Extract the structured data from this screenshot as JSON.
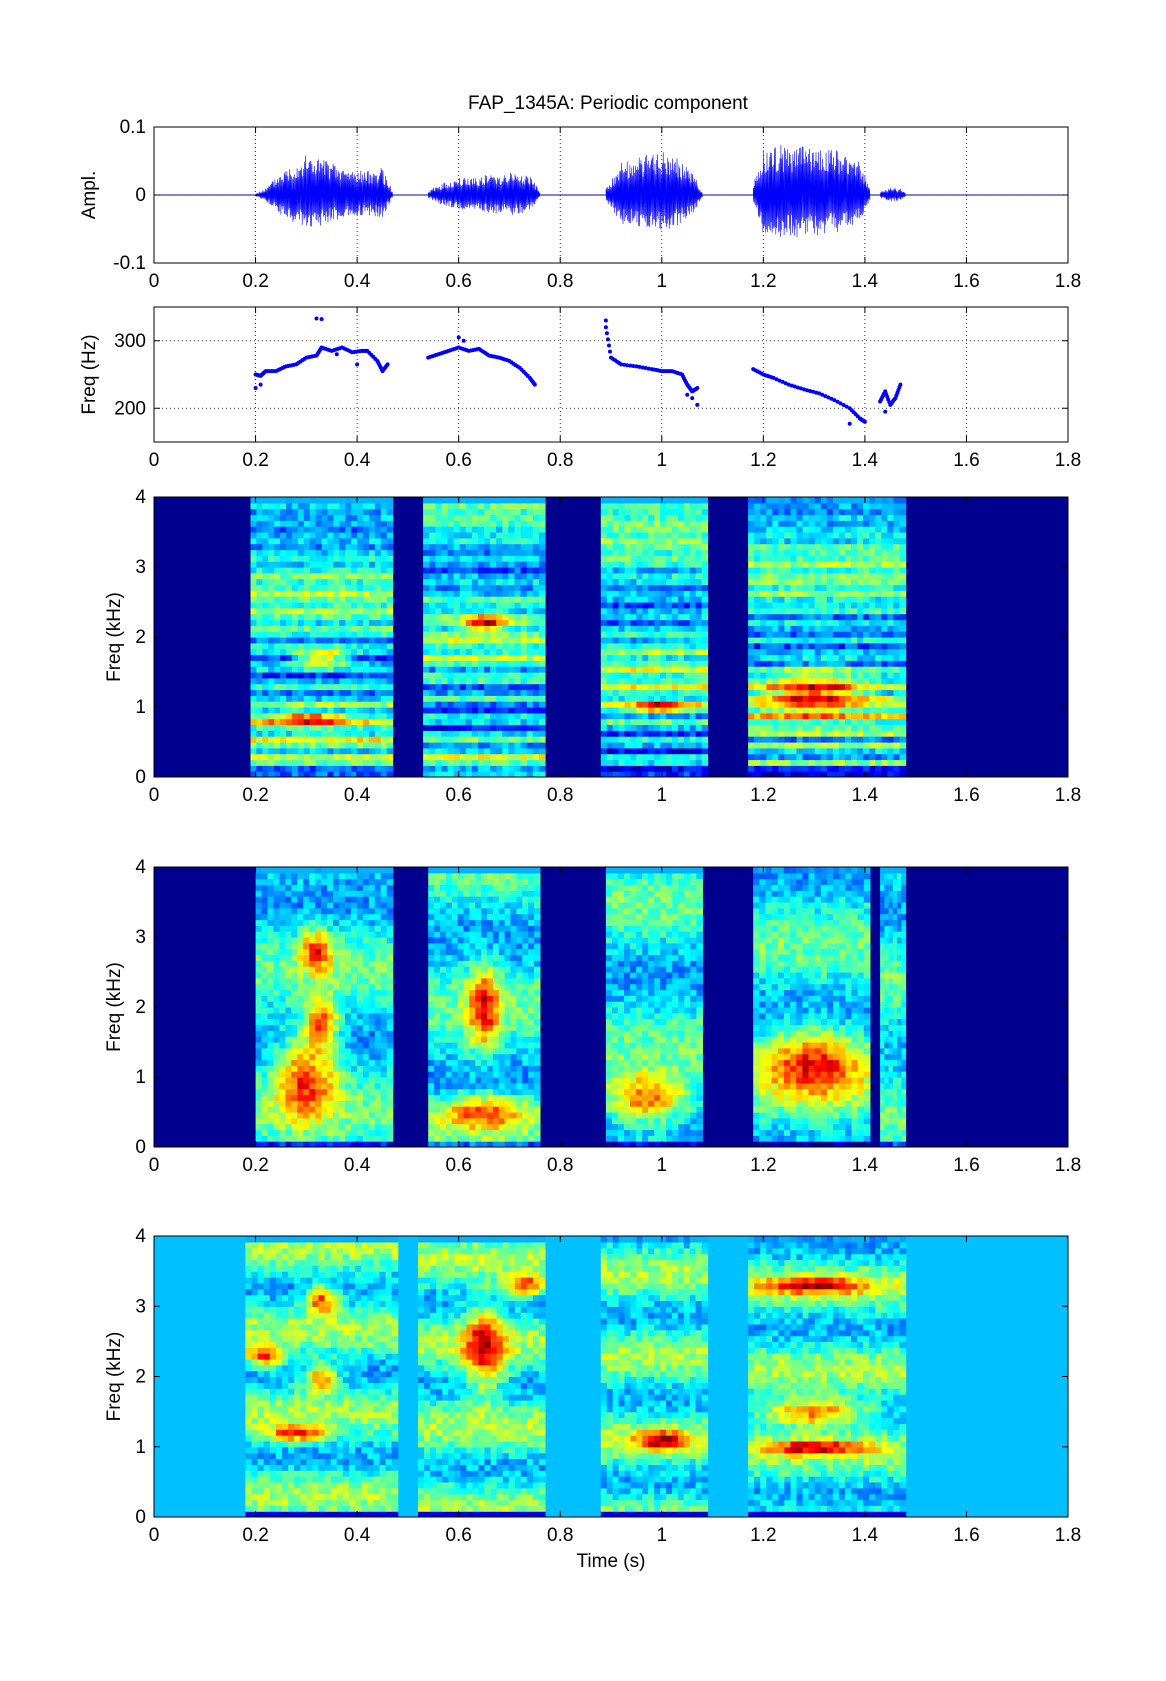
{
  "title": "FAP_1345A: Periodic component",
  "chart_data": [
    {
      "type": "line",
      "panel": "waveform",
      "title": "FAP_1345A: Periodic component",
      "ylabel": "Ampl.",
      "xlabel": "",
      "xlim": [
        0,
        1.8
      ],
      "ylim": [
        -0.1,
        0.1
      ],
      "xticks": [
        "0",
        "0.2",
        "0.4",
        "0.6",
        "0.8",
        "1",
        "1.2",
        "1.4",
        "1.6",
        "1.8"
      ],
      "yticks": [
        "-0.1",
        "0",
        "0.1"
      ],
      "grid": true,
      "line_color": "#0000ff",
      "voiced_segments": [
        {
          "start": 0.2,
          "end": 0.47,
          "envelope": [
            [
              0.2,
              0.002
            ],
            [
              0.22,
              0.01
            ],
            [
              0.25,
              0.035
            ],
            [
              0.3,
              0.06
            ],
            [
              0.33,
              0.055
            ],
            [
              0.37,
              0.04
            ],
            [
              0.42,
              0.035
            ],
            [
              0.45,
              0.04
            ],
            [
              0.47,
              0.005
            ]
          ]
        },
        {
          "start": 0.54,
          "end": 0.76,
          "envelope": [
            [
              0.54,
              0.005
            ],
            [
              0.56,
              0.015
            ],
            [
              0.6,
              0.025
            ],
            [
              0.65,
              0.03
            ],
            [
              0.7,
              0.035
            ],
            [
              0.74,
              0.03
            ],
            [
              0.76,
              0.005
            ]
          ]
        },
        {
          "start": 0.89,
          "end": 1.08,
          "envelope": [
            [
              0.89,
              0.01
            ],
            [
              0.92,
              0.05
            ],
            [
              0.95,
              0.055
            ],
            [
              1.0,
              0.065
            ],
            [
              1.03,
              0.055
            ],
            [
              1.06,
              0.035
            ],
            [
              1.08,
              0.005
            ]
          ]
        },
        {
          "start": 1.18,
          "end": 1.41,
          "envelope": [
            [
              1.18,
              0.015
            ],
            [
              1.2,
              0.07
            ],
            [
              1.25,
              0.075
            ],
            [
              1.3,
              0.07
            ],
            [
              1.35,
              0.065
            ],
            [
              1.39,
              0.05
            ],
            [
              1.41,
              0.01
            ]
          ]
        },
        {
          "start": 1.43,
          "end": 1.48,
          "envelope": [
            [
              1.43,
              0.005
            ],
            [
              1.45,
              0.012
            ],
            [
              1.47,
              0.01
            ],
            [
              1.48,
              0.003
            ]
          ]
        }
      ]
    },
    {
      "type": "scatter",
      "panel": "pitch",
      "ylabel": "Freq (Hz)",
      "xlabel": "",
      "xlim": [
        0,
        1.8
      ],
      "ylim": [
        150,
        350
      ],
      "xticks": [
        "0",
        "0.2",
        "0.4",
        "0.6",
        "0.8",
        "1",
        "1.2",
        "1.4",
        "1.6",
        "1.8"
      ],
      "yticks": [
        "200",
        "300"
      ],
      "grid": true,
      "marker_color": "#0000ff",
      "contours": [
        [
          [
            0.2,
            250
          ],
          [
            0.21,
            248
          ],
          [
            0.22,
            255
          ],
          [
            0.24,
            255
          ],
          [
            0.26,
            262
          ],
          [
            0.28,
            265
          ],
          [
            0.3,
            275
          ],
          [
            0.32,
            278
          ],
          [
            0.33,
            290
          ],
          [
            0.35,
            285
          ],
          [
            0.37,
            290
          ],
          [
            0.39,
            283
          ],
          [
            0.41,
            285
          ],
          [
            0.42,
            285
          ],
          [
            0.44,
            270
          ],
          [
            0.45,
            255
          ],
          [
            0.46,
            265
          ]
        ],
        [
          [
            0.54,
            275
          ],
          [
            0.56,
            280
          ],
          [
            0.58,
            285
          ],
          [
            0.6,
            290
          ],
          [
            0.62,
            285
          ],
          [
            0.64,
            288
          ],
          [
            0.66,
            278
          ],
          [
            0.68,
            275
          ],
          [
            0.7,
            270
          ],
          [
            0.72,
            260
          ],
          [
            0.74,
            245
          ],
          [
            0.75,
            235
          ]
        ],
        [
          [
            0.89,
            320
          ],
          [
            0.9,
            275
          ],
          [
            0.92,
            265
          ],
          [
            0.95,
            262
          ],
          [
            0.98,
            258
          ],
          [
            1.0,
            255
          ],
          [
            1.02,
            255
          ],
          [
            1.04,
            250
          ],
          [
            1.05,
            235
          ],
          [
            1.06,
            225
          ],
          [
            1.07,
            230
          ]
        ],
        [
          [
            1.18,
            258
          ],
          [
            1.2,
            250
          ],
          [
            1.22,
            245
          ],
          [
            1.25,
            235
          ],
          [
            1.28,
            228
          ],
          [
            1.31,
            222
          ],
          [
            1.34,
            212
          ],
          [
            1.37,
            200
          ],
          [
            1.39,
            185
          ],
          [
            1.4,
            180
          ]
        ],
        [
          [
            1.43,
            210
          ],
          [
            1.44,
            225
          ],
          [
            1.45,
            205
          ],
          [
            1.46,
            215
          ],
          [
            1.47,
            235
          ]
        ]
      ],
      "outliers": [
        [
          0.2,
          230
        ],
        [
          0.21,
          235
        ],
        [
          0.32,
          333
        ],
        [
          0.33,
          332
        ],
        [
          0.36,
          280
        ],
        [
          0.4,
          265
        ],
        [
          0.6,
          305
        ],
        [
          0.61,
          300
        ],
        [
          0.89,
          330
        ],
        [
          1.05,
          220
        ],
        [
          1.06,
          215
        ],
        [
          1.07,
          205
        ],
        [
          1.37,
          177
        ],
        [
          1.44,
          195
        ]
      ]
    },
    {
      "type": "heatmap",
      "panel": "spectrogram-narrowband",
      "ylabel": "Freq (kHz)",
      "xlabel": "",
      "xlim": [
        0,
        1.8
      ],
      "ylim": [
        0,
        4
      ],
      "xticks": [
        "0",
        "0.2",
        "0.4",
        "0.6",
        "0.8",
        "1",
        "1.2",
        "1.4",
        "1.6",
        "1.8"
      ],
      "yticks": [
        "0",
        "1",
        "2",
        "3",
        "4"
      ],
      "colormap": "jet",
      "background": "#00008f",
      "active_regions": [
        [
          0.19,
          0.47
        ],
        [
          0.53,
          0.77
        ],
        [
          0.88,
          1.09
        ],
        [
          1.17,
          1.48
        ]
      ],
      "harmonics_f0_hz": [
        262,
        282,
        258,
        218
      ],
      "hotspots": [
        {
          "t": 0.33,
          "f": 1.7,
          "w": 0.05,
          "h": 0.12
        },
        {
          "t": 0.3,
          "f": 0.85,
          "w": 0.08,
          "h": 0.08
        },
        {
          "t": 0.65,
          "f": 2.2,
          "w": 0.04,
          "h": 0.12
        },
        {
          "t": 1.0,
          "f": 1.0,
          "w": 0.06,
          "h": 0.08
        },
        {
          "t": 1.3,
          "f": 1.2,
          "w": 0.1,
          "h": 0.3
        }
      ]
    },
    {
      "type": "heatmap",
      "panel": "spectrogram-wideband",
      "ylabel": "Freq (kHz)",
      "xlabel": "",
      "xlim": [
        0,
        1.8
      ],
      "ylim": [
        0,
        4
      ],
      "xticks": [
        "0",
        "0.2",
        "0.4",
        "0.6",
        "0.8",
        "1",
        "1.2",
        "1.4",
        "1.6",
        "1.8"
      ],
      "yticks": [
        "0",
        "1",
        "2",
        "3",
        "4"
      ],
      "colormap": "jet",
      "background": "#00008f",
      "active_regions": [
        [
          0.2,
          0.47
        ],
        [
          0.54,
          0.76
        ],
        [
          0.89,
          1.08
        ],
        [
          1.18,
          1.41
        ],
        [
          1.43,
          1.48
        ]
      ],
      "hotspots": [
        {
          "t": 0.3,
          "f": 1.0,
          "w": 0.06,
          "h": 0.6
        },
        {
          "t": 0.33,
          "f": 1.8,
          "w": 0.03,
          "h": 0.35
        },
        {
          "t": 0.32,
          "f": 2.8,
          "w": 0.03,
          "h": 0.3
        },
        {
          "t": 0.65,
          "f": 2.0,
          "w": 0.03,
          "h": 0.6
        },
        {
          "t": 0.65,
          "f": 0.5,
          "w": 0.1,
          "h": 0.25
        },
        {
          "t": 0.97,
          "f": 0.7,
          "w": 0.08,
          "h": 0.35
        },
        {
          "t": 1.3,
          "f": 1.2,
          "w": 0.1,
          "h": 0.5
        }
      ]
    },
    {
      "type": "heatmap",
      "panel": "spectrogram-lpc",
      "ylabel": "Freq (kHz)",
      "xlabel": "Time (s)",
      "xlim": [
        0,
        1.8
      ],
      "ylim": [
        0,
        4
      ],
      "xticks": [
        "0",
        "0.2",
        "0.4",
        "0.6",
        "0.8",
        "1",
        "1.2",
        "1.4",
        "1.6",
        "1.8"
      ],
      "yticks": [
        "0",
        "1",
        "2",
        "3",
        "4"
      ],
      "colormap": "jet",
      "background": "#00c0ff",
      "active_regions": [
        [
          0.18,
          0.48
        ],
        [
          0.52,
          0.77
        ],
        [
          0.88,
          1.09
        ],
        [
          1.17,
          1.48
        ]
      ],
      "hotspots": [
        {
          "t": 0.22,
          "f": 2.3,
          "w": 0.04,
          "h": 0.15
        },
        {
          "t": 0.33,
          "f": 2.0,
          "w": 0.03,
          "h": 0.2
        },
        {
          "t": 0.33,
          "f": 3.1,
          "w": 0.03,
          "h": 0.2
        },
        {
          "t": 0.28,
          "f": 1.2,
          "w": 0.06,
          "h": 0.12
        },
        {
          "t": 0.65,
          "f": 2.4,
          "w": 0.04,
          "h": 0.6
        },
        {
          "t": 0.73,
          "f": 3.3,
          "w": 0.04,
          "h": 0.15
        },
        {
          "t": 1.0,
          "f": 1.1,
          "w": 0.05,
          "h": 0.15
        },
        {
          "t": 1.3,
          "f": 1.5,
          "w": 0.1,
          "h": 0.2
        },
        {
          "t": 1.3,
          "f": 1.0,
          "w": 0.1,
          "h": 0.1
        },
        {
          "t": 1.3,
          "f": 3.3,
          "w": 0.1,
          "h": 0.12
        }
      ]
    }
  ]
}
